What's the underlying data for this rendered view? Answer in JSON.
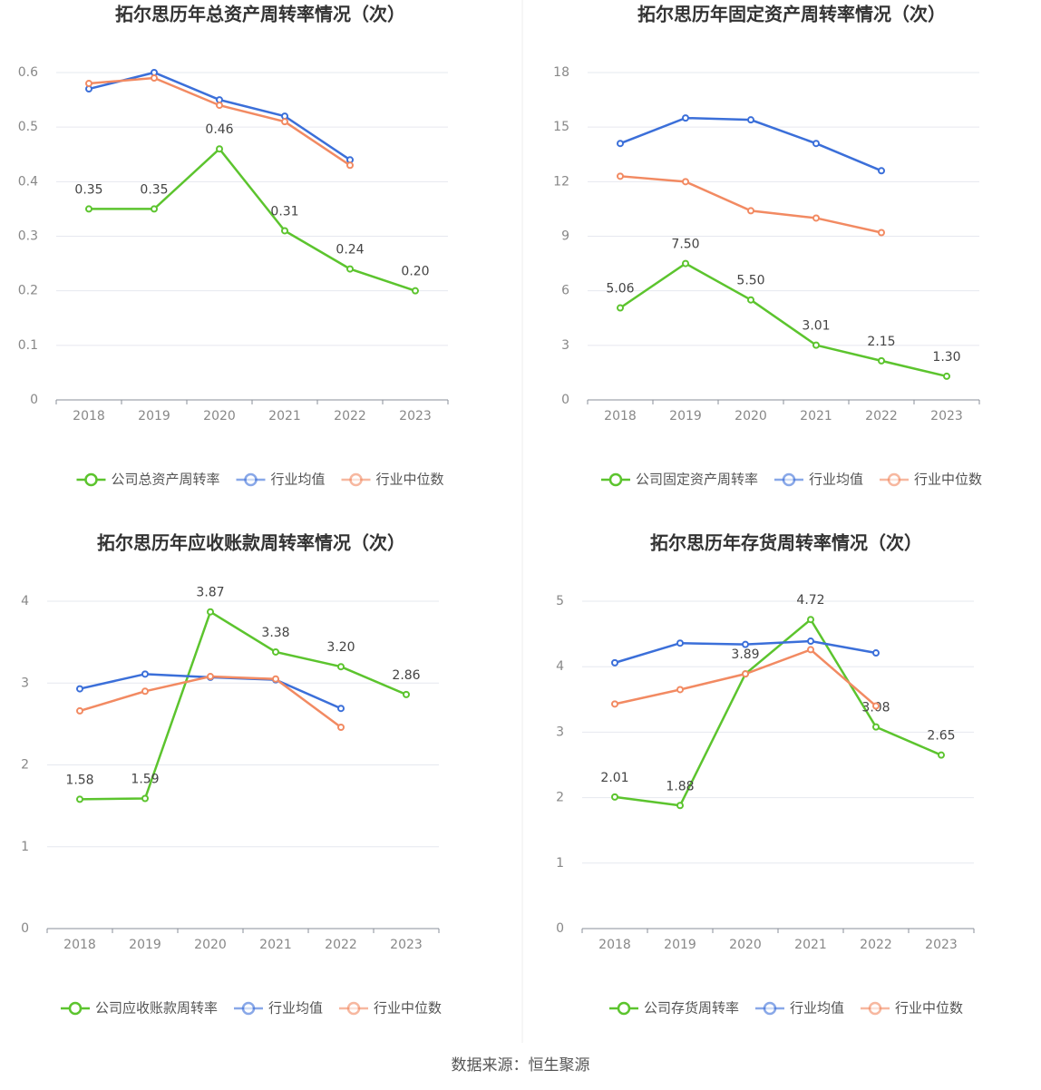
{
  "chart_data": [
    {
      "type": "line",
      "title": "拓尔思历年总资产周转率情况（次）",
      "categories": [
        "2018",
        "2019",
        "2020",
        "2021",
        "2022",
        "2023"
      ],
      "series": [
        {
          "name": "公司总资产周转率",
          "color": "#5cc42e",
          "values": [
            0.35,
            0.35,
            0.46,
            0.31,
            0.24,
            0.2
          ],
          "value_labels": [
            "0.35",
            "0.35",
            "0.46",
            "0.31",
            "0.24",
            "0.20"
          ]
        },
        {
          "name": "行业均值",
          "color": "#3b6fd9",
          "values": [
            0.57,
            0.6,
            0.55,
            0.52,
            0.44,
            null
          ]
        },
        {
          "name": "行业中位数",
          "color": "#f28a62",
          "values": [
            0.58,
            0.59,
            0.54,
            0.51,
            0.43,
            null
          ]
        }
      ],
      "ylim": [
        0,
        0.6
      ],
      "yticks": [
        0,
        0.1,
        0.2,
        0.3,
        0.4,
        0.5,
        0.6
      ],
      "grid": true
    },
    {
      "type": "line",
      "title": "拓尔思历年固定资产周转率情况（次）",
      "categories": [
        "2018",
        "2019",
        "2020",
        "2021",
        "2022",
        "2023"
      ],
      "series": [
        {
          "name": "公司固定资产周转率",
          "color": "#5cc42e",
          "values": [
            5.06,
            7.5,
            5.5,
            3.01,
            2.15,
            1.3
          ],
          "value_labels": [
            "5.06",
            "7.50",
            "5.50",
            "3.01",
            "2.15",
            "1.30"
          ]
        },
        {
          "name": "行业均值",
          "color": "#3b6fd9",
          "values": [
            14.1,
            15.5,
            15.4,
            14.1,
            12.6,
            null
          ]
        },
        {
          "name": "行业中位数",
          "color": "#f28a62",
          "values": [
            12.3,
            12.0,
            10.4,
            10.0,
            9.2,
            null
          ]
        }
      ],
      "ylim": [
        0,
        18
      ],
      "yticks": [
        0,
        3,
        6,
        9,
        12,
        15,
        18
      ],
      "grid": true
    },
    {
      "type": "line",
      "title": "拓尔思历年应收账款周转率情况（次）",
      "categories": [
        "2018",
        "2019",
        "2020",
        "2021",
        "2022",
        "2023"
      ],
      "series": [
        {
          "name": "公司应收账款周转率",
          "color": "#5cc42e",
          "values": [
            1.58,
            1.59,
            3.87,
            3.38,
            3.2,
            2.86
          ],
          "value_labels": [
            "1.58",
            "1.59",
            "3.87",
            "3.38",
            "3.20",
            "2.86"
          ]
        },
        {
          "name": "行业均值",
          "color": "#3b6fd9",
          "values": [
            2.93,
            3.11,
            3.07,
            3.04,
            2.69,
            null
          ]
        },
        {
          "name": "行业中位数",
          "color": "#f28a62",
          "values": [
            2.66,
            2.9,
            3.08,
            3.05,
            2.46,
            null
          ]
        }
      ],
      "ylim": [
        0,
        4
      ],
      "yticks": [
        0,
        1,
        2,
        3,
        4
      ],
      "grid": true
    },
    {
      "type": "line",
      "title": "拓尔思历年存货周转率情况（次）",
      "categories": [
        "2018",
        "2019",
        "2020",
        "2021",
        "2022",
        "2023"
      ],
      "series": [
        {
          "name": "公司存货周转率",
          "color": "#5cc42e",
          "values": [
            2.01,
            1.88,
            3.89,
            4.72,
            3.08,
            2.65
          ],
          "value_labels": [
            "2.01",
            "1.88",
            "3.89",
            "4.72",
            "3.08",
            "2.65"
          ]
        },
        {
          "name": "行业均值",
          "color": "#3b6fd9",
          "values": [
            4.06,
            4.36,
            4.34,
            4.39,
            4.21,
            null
          ]
        },
        {
          "name": "行业中位数",
          "color": "#f28a62",
          "values": [
            3.43,
            3.65,
            3.89,
            4.26,
            3.4,
            null
          ]
        }
      ],
      "ylim": [
        0,
        5
      ],
      "yticks": [
        0,
        1,
        2,
        3,
        4,
        5
      ],
      "grid": true
    }
  ],
  "source": "数据来源：恒生聚源"
}
